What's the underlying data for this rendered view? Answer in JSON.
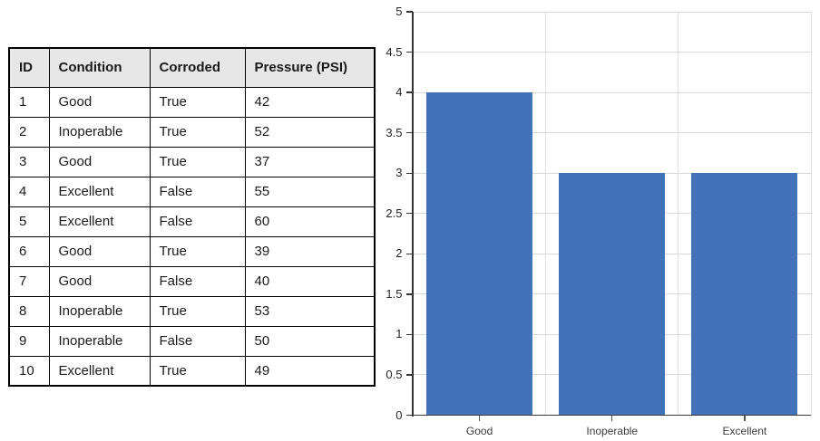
{
  "table": {
    "headers": [
      "ID",
      "Condition",
      "Corroded",
      "Pressure (PSI)"
    ],
    "rows": [
      [
        "1",
        "Good",
        "True",
        "42"
      ],
      [
        "2",
        "Inoperable",
        "True",
        "52"
      ],
      [
        "3",
        "Good",
        "True",
        "37"
      ],
      [
        "4",
        "Excellent",
        "False",
        "55"
      ],
      [
        "5",
        "Excellent",
        "False",
        "60"
      ],
      [
        "6",
        "Good",
        "True",
        "39"
      ],
      [
        "7",
        "Good",
        "False",
        "40"
      ],
      [
        "8",
        "Inoperable",
        "True",
        "53"
      ],
      [
        "9",
        "Inoperable",
        "False",
        "50"
      ],
      [
        "10",
        "Excellent",
        "True",
        "49"
      ]
    ]
  },
  "chart_data": {
    "type": "bar",
    "categories": [
      "Good",
      "Inoperable",
      "Excellent"
    ],
    "values": [
      4,
      3,
      3
    ],
    "title": "",
    "xlabel": "",
    "ylabel": "",
    "ylim": [
      0,
      5
    ],
    "ytick_step": 0.5,
    "ytick_labels": [
      "0",
      "0.5",
      "1",
      "1.5",
      "2",
      "2.5",
      "3",
      "3.5",
      "4",
      "4.5",
      "5"
    ],
    "grid": true,
    "legend": false,
    "bar_color": "#4472b9",
    "gridline_color": "#d9d9d9",
    "axis_color": "#333333",
    "tick_label_color": "#262626",
    "category_label_color": "#3d3d3d"
  }
}
